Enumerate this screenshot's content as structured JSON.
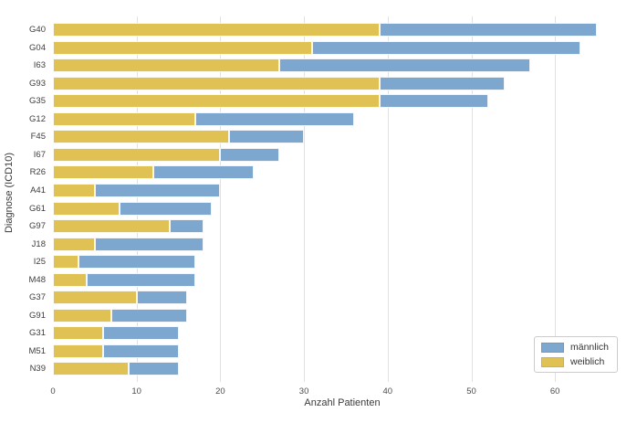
{
  "chart_data": {
    "type": "bar",
    "orientation": "horizontal",
    "stacked": true,
    "title": "",
    "xlabel": "Anzahl Patienten",
    "ylabel": "Diagnose (ICD10)",
    "categories": [
      "G40",
      "G04",
      "I63",
      "G93",
      "G35",
      "G12",
      "F45",
      "I67",
      "R26",
      "A41",
      "G61",
      "G97",
      "J18",
      "I25",
      "M48",
      "G37",
      "G91",
      "G31",
      "M51",
      "N39"
    ],
    "series": [
      {
        "name": "weiblich",
        "color": "#e0c154",
        "values": [
          39,
          31,
          27,
          39,
          39,
          17,
          21,
          20,
          12,
          5,
          8,
          14,
          5,
          3,
          4,
          10,
          7,
          6,
          6,
          9
        ]
      },
      {
        "name": "männlich",
        "color": "#7da7cf",
        "values": [
          26,
          32,
          30,
          15,
          13,
          19,
          9,
          7,
          12,
          15,
          11,
          4,
          13,
          14,
          13,
          6,
          9,
          9,
          9,
          6
        ]
      }
    ],
    "x_ticks": [
      0,
      10,
      20,
      30,
      40,
      50,
      60
    ],
    "xlim": [
      0,
      68.25
    ],
    "grid": true,
    "background_color": "#ffffff",
    "gridline_color": "#e1e1e1",
    "legend": {
      "position": "lower right",
      "entries": [
        {
          "label": "männlich",
          "color": "#7da7cf"
        },
        {
          "label": "weiblich",
          "color": "#e0c154"
        }
      ]
    }
  }
}
